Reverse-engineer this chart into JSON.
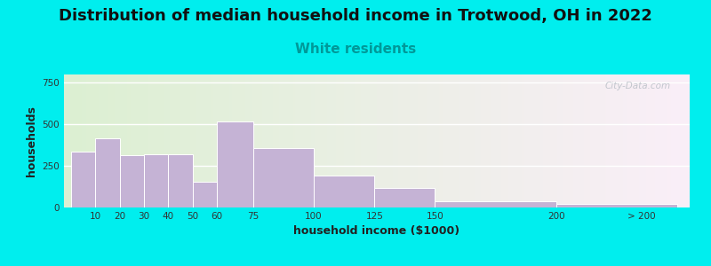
{
  "title": "Distribution of median household income in Trotwood, OH in 2022",
  "subtitle": "White residents",
  "xlabel": "household income ($1000)",
  "ylabel": "households",
  "bar_color": "#c5b3d5",
  "bar_edgecolor": "#ffffff",
  "background_color": "#00eeee",
  "yticks": [
    0,
    250,
    500,
    750
  ],
  "ylim": [
    0,
    800
  ],
  "title_fontsize": 13,
  "subtitle_fontsize": 11,
  "subtitle_color": "#009999",
  "watermark": "City-Data.com",
  "bar_lefts": [
    0,
    10,
    20,
    30,
    40,
    50,
    60,
    75,
    100,
    125,
    150,
    200
  ],
  "bar_widths": [
    10,
    10,
    10,
    10,
    10,
    10,
    15,
    25,
    25,
    25,
    50,
    50
  ],
  "bar_heights": [
    335,
    415,
    315,
    320,
    320,
    155,
    520,
    360,
    190,
    120,
    40,
    20
  ],
  "tick_positions": [
    10,
    20,
    30,
    40,
    50,
    60,
    75,
    100,
    125,
    150,
    200,
    235
  ],
  "tick_labels": [
    "10",
    "20",
    "30",
    "40",
    "50",
    "60",
    "75",
    "100",
    "125",
    "150",
    "200",
    "> 200"
  ],
  "xlim_left": -3,
  "xlim_right": 255
}
